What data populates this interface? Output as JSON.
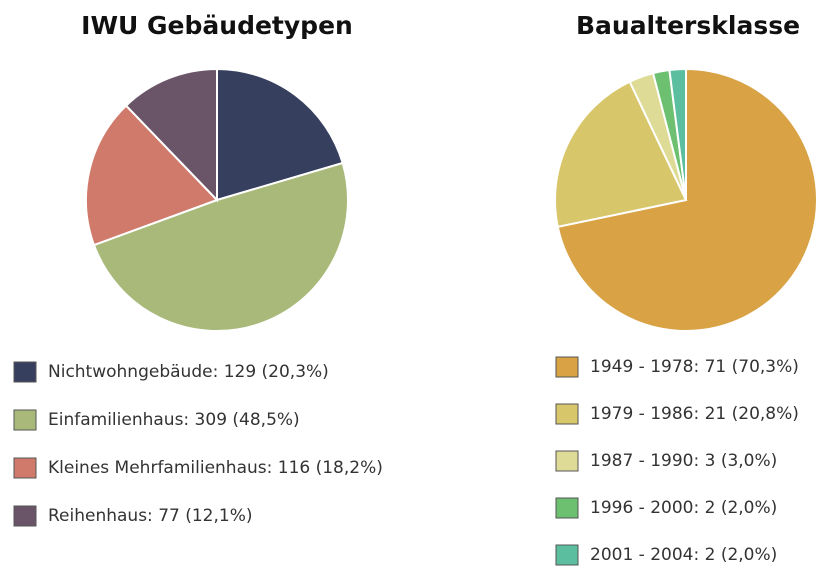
{
  "chart_data": [
    {
      "type": "pie",
      "title": "IWU Gebäudetypen",
      "labels": [
        "Nichtwohngebäude: 129 (20,3%)",
        "Einfamilienhaus: 309 (48,5%)",
        "Kleines Mehrfamilienhaus: 116 (18,2%)",
        "Reihenhaus: 77 (12,1%)"
      ],
      "values": [
        129,
        309,
        116,
        77
      ],
      "colors": [
        "#36405e",
        "#a8b97a",
        "#d07a6b",
        "#6a5468"
      ]
    },
    {
      "type": "pie",
      "title": "Baualtersklasse",
      "labels": [
        "1949 - 1978: 71 (70,3%)",
        "1979 - 1986: 21 (20,8%)",
        "1987 - 1990: 3 (3,0%)",
        "1996 - 2000: 2 (2,0%)",
        "2001 - 2004: 2 (2,0%)"
      ],
      "values": [
        71,
        21,
        3,
        2,
        2
      ],
      "colors": [
        "#d8a245",
        "#d8c66a",
        "#dedb96",
        "#6cc070",
        "#5bbf9f"
      ]
    }
  ]
}
